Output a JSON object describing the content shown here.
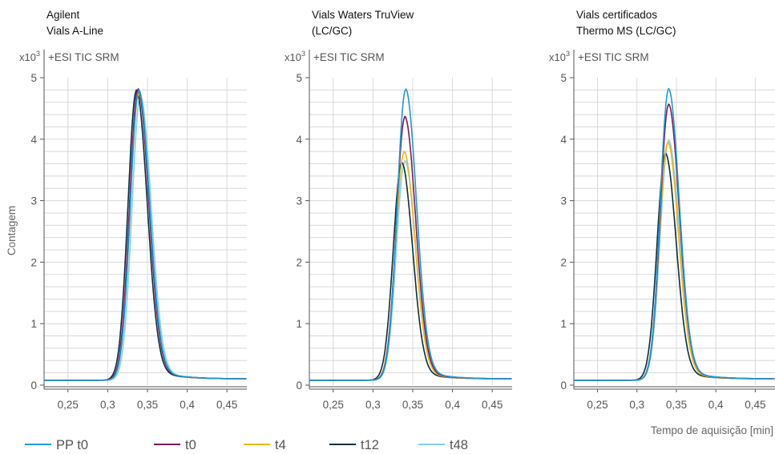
{
  "y_axis_title": "Contagem",
  "x_axis_title": "Tempo de aquisição [min]",
  "chart_data": [
    {
      "type": "line",
      "title_lines": [
        "Agilent",
        "Vials A-Line"
      ],
      "signal_label": "+ESI TIC SRM",
      "y_multiplier_base": "x10",
      "y_multiplier_exp": "3",
      "xlim": [
        0.22,
        0.475
      ],
      "ylim": [
        0,
        5
      ],
      "x_ticks": [
        {
          "value": 0.25,
          "label": "0,25"
        },
        {
          "value": 0.3,
          "label": "0,3"
        },
        {
          "value": 0.35,
          "label": "0,35"
        },
        {
          "value": 0.4,
          "label": "0,4"
        },
        {
          "value": 0.45,
          "label": "0,45"
        }
      ],
      "y_ticks": [
        {
          "value": 0,
          "label": "0"
        },
        {
          "value": 1,
          "label": "1"
        },
        {
          "value": 2,
          "label": "2"
        },
        {
          "value": 3,
          "label": "3"
        },
        {
          "value": 4,
          "label": "4"
        },
        {
          "value": 5,
          "label": "5"
        }
      ],
      "series": [
        {
          "name": "PP t0",
          "color": "#1f9ad6",
          "peak_x": 0.339,
          "peak_y": 4.7,
          "x": [
            0.22,
            0.25,
            0.3,
            0.31,
            0.32,
            0.33,
            0.339,
            0.35,
            0.36,
            0.37,
            0.38,
            0.4,
            0.43,
            0.475
          ],
          "y": [
            0.08,
            0.09,
            0.1,
            0.35,
            1.6,
            3.7,
            4.7,
            3.8,
            2.2,
            1.0,
            0.45,
            0.16,
            0.11,
            0.1
          ]
        },
        {
          "name": "t0",
          "color": "#7a1c5c",
          "peak_x": 0.338,
          "peak_y": 4.72,
          "x": [
            0.22,
            0.25,
            0.3,
            0.31,
            0.32,
            0.33,
            0.338,
            0.35,
            0.36,
            0.37,
            0.38,
            0.4,
            0.43,
            0.475
          ],
          "y": [
            0.08,
            0.09,
            0.1,
            0.4,
            1.7,
            3.8,
            4.72,
            3.7,
            2.1,
            0.95,
            0.43,
            0.15,
            0.1,
            0.09
          ]
        },
        {
          "name": "t4",
          "color": "#f2b705",
          "peak_x": 0.339,
          "peak_y": 4.65,
          "x": [
            0.22,
            0.25,
            0.3,
            0.31,
            0.32,
            0.33,
            0.339,
            0.35,
            0.36,
            0.37,
            0.38,
            0.4,
            0.43,
            0.475
          ],
          "y": [
            0.08,
            0.09,
            0.1,
            0.33,
            1.5,
            3.6,
            4.65,
            3.75,
            2.15,
            1.0,
            0.45,
            0.16,
            0.11,
            0.1
          ]
        },
        {
          "name": "t12",
          "color": "#0b2e3f",
          "peak_x": 0.336,
          "peak_y": 4.7,
          "x": [
            0.22,
            0.25,
            0.3,
            0.31,
            0.32,
            0.33,
            0.336,
            0.35,
            0.36,
            0.37,
            0.38,
            0.4,
            0.43,
            0.475
          ],
          "y": [
            0.08,
            0.09,
            0.1,
            0.45,
            1.9,
            4.0,
            4.7,
            3.5,
            1.9,
            0.85,
            0.38,
            0.14,
            0.1,
            0.09
          ]
        },
        {
          "name": "t48",
          "color": "#7fd0ee",
          "peak_x": 0.341,
          "peak_y": 4.6,
          "x": [
            0.22,
            0.25,
            0.3,
            0.31,
            0.32,
            0.33,
            0.341,
            0.35,
            0.36,
            0.37,
            0.38,
            0.4,
            0.43,
            0.475
          ],
          "y": [
            0.08,
            0.09,
            0.1,
            0.28,
            1.3,
            3.4,
            4.6,
            3.85,
            2.3,
            1.08,
            0.48,
            0.17,
            0.11,
            0.1
          ]
        }
      ]
    },
    {
      "type": "line",
      "title_lines": [
        "Vials Waters TruView",
        "(LC/GC)"
      ],
      "signal_label": "+ESI TIC SRM",
      "y_multiplier_base": "x10",
      "y_multiplier_exp": "3",
      "xlim": [
        0.22,
        0.475
      ],
      "ylim": [
        0,
        5
      ],
      "x_ticks": [
        {
          "value": 0.25,
          "label": "0,25"
        },
        {
          "value": 0.3,
          "label": "0,3"
        },
        {
          "value": 0.35,
          "label": "0,35"
        },
        {
          "value": 0.4,
          "label": "0,4"
        },
        {
          "value": 0.45,
          "label": "0,45"
        }
      ],
      "y_ticks": [
        {
          "value": 0,
          "label": "0"
        },
        {
          "value": 1,
          "label": "1"
        },
        {
          "value": 2,
          "label": "2"
        },
        {
          "value": 3,
          "label": "3"
        },
        {
          "value": 4,
          "label": "4"
        },
        {
          "value": 5,
          "label": "5"
        }
      ],
      "series": [
        {
          "name": "PP t0",
          "color": "#1f9ad6",
          "peak_x": 0.341,
          "peak_y": 4.72,
          "x": [
            0.22,
            0.25,
            0.3,
            0.31,
            0.32,
            0.33,
            0.341,
            0.35,
            0.36,
            0.37,
            0.38,
            0.4,
            0.43,
            0.475
          ],
          "y": [
            0.08,
            0.09,
            0.1,
            0.3,
            1.4,
            3.5,
            4.72,
            3.9,
            2.35,
            1.1,
            0.5,
            0.18,
            0.11,
            0.1
          ]
        },
        {
          "name": "t0",
          "color": "#7a1c5c",
          "peak_x": 0.34,
          "peak_y": 4.27,
          "x": [
            0.22,
            0.25,
            0.3,
            0.31,
            0.32,
            0.33,
            0.34,
            0.35,
            0.36,
            0.37,
            0.38,
            0.4,
            0.43,
            0.475
          ],
          "y": [
            0.08,
            0.09,
            0.1,
            0.3,
            1.3,
            3.2,
            4.27,
            3.5,
            2.05,
            0.95,
            0.43,
            0.16,
            0.1,
            0.09
          ]
        },
        {
          "name": "t4",
          "color": "#f2b705",
          "peak_x": 0.339,
          "peak_y": 3.7,
          "x": [
            0.22,
            0.25,
            0.3,
            0.31,
            0.32,
            0.33,
            0.339,
            0.35,
            0.36,
            0.37,
            0.38,
            0.4,
            0.43,
            0.475
          ],
          "y": [
            0.08,
            0.09,
            0.1,
            0.3,
            1.2,
            2.9,
            3.7,
            3.0,
            1.8,
            0.85,
            0.4,
            0.15,
            0.1,
            0.09
          ]
        },
        {
          "name": "t12",
          "color": "#0b2e3f",
          "peak_x": 0.336,
          "peak_y": 3.52,
          "x": [
            0.22,
            0.25,
            0.3,
            0.31,
            0.32,
            0.33,
            0.336,
            0.35,
            0.36,
            0.37,
            0.38,
            0.4,
            0.43,
            0.475
          ],
          "y": [
            0.08,
            0.09,
            0.1,
            0.35,
            1.4,
            3.0,
            3.52,
            2.6,
            1.45,
            0.65,
            0.3,
            0.12,
            0.1,
            0.09
          ]
        },
        {
          "name": "t48",
          "color": "#7fd0ee",
          "peak_x": 0.34,
          "peak_y": 3.55,
          "x": [
            0.22,
            0.25,
            0.3,
            0.31,
            0.32,
            0.33,
            0.34,
            0.35,
            0.36,
            0.37,
            0.38,
            0.4,
            0.43,
            0.475
          ],
          "y": [
            0.08,
            0.09,
            0.1,
            0.25,
            1.1,
            2.7,
            3.55,
            2.95,
            1.8,
            0.85,
            0.4,
            0.15,
            0.1,
            0.09
          ]
        }
      ]
    },
    {
      "type": "line",
      "title_lines": [
        "Vials certificados",
        "Thermo MS (LC/GC)"
      ],
      "signal_label": "+ESI TIC SRM",
      "y_multiplier_base": "x10",
      "y_multiplier_exp": "3",
      "xlim": [
        0.22,
        0.475
      ],
      "ylim": [
        0,
        5
      ],
      "x_ticks": [
        {
          "value": 0.25,
          "label": "0,25"
        },
        {
          "value": 0.3,
          "label": "0,3"
        },
        {
          "value": 0.35,
          "label": "0,35"
        },
        {
          "value": 0.4,
          "label": "0,4"
        },
        {
          "value": 0.45,
          "label": "0,45"
        }
      ],
      "y_ticks": [
        {
          "value": 0,
          "label": "0"
        },
        {
          "value": 1,
          "label": "1"
        },
        {
          "value": 2,
          "label": "2"
        },
        {
          "value": 3,
          "label": "3"
        },
        {
          "value": 4,
          "label": "4"
        },
        {
          "value": 5,
          "label": "5"
        }
      ],
      "series": [
        {
          "name": "PP t0",
          "color": "#1f9ad6",
          "peak_x": 0.34,
          "peak_y": 4.72,
          "x": [
            0.22,
            0.25,
            0.3,
            0.31,
            0.32,
            0.33,
            0.34,
            0.35,
            0.36,
            0.37,
            0.38,
            0.4,
            0.43,
            0.475
          ],
          "y": [
            0.08,
            0.09,
            0.1,
            0.3,
            1.4,
            3.5,
            4.72,
            3.9,
            2.35,
            1.1,
            0.5,
            0.18,
            0.11,
            0.1
          ]
        },
        {
          "name": "t0",
          "color": "#7a1c5c",
          "peak_x": 0.34,
          "peak_y": 4.47,
          "x": [
            0.22,
            0.25,
            0.3,
            0.31,
            0.32,
            0.33,
            0.34,
            0.35,
            0.36,
            0.37,
            0.38,
            0.4,
            0.43,
            0.475
          ],
          "y": [
            0.08,
            0.09,
            0.1,
            0.3,
            1.35,
            3.3,
            4.47,
            3.65,
            2.15,
            1.0,
            0.45,
            0.16,
            0.1,
            0.09
          ]
        },
        {
          "name": "t4",
          "color": "#f2b705",
          "peak_x": 0.339,
          "peak_y": 3.85,
          "x": [
            0.22,
            0.25,
            0.3,
            0.31,
            0.32,
            0.33,
            0.339,
            0.35,
            0.36,
            0.37,
            0.38,
            0.4,
            0.43,
            0.475
          ],
          "y": [
            0.08,
            0.09,
            0.1,
            0.3,
            1.25,
            3.0,
            3.85,
            3.1,
            1.85,
            0.88,
            0.4,
            0.15,
            0.1,
            0.09
          ]
        },
        {
          "name": "t12",
          "color": "#0b2e3f",
          "peak_x": 0.336,
          "peak_y": 3.67,
          "x": [
            0.22,
            0.25,
            0.3,
            0.31,
            0.32,
            0.33,
            0.336,
            0.35,
            0.36,
            0.37,
            0.38,
            0.4,
            0.43,
            0.475
          ],
          "y": [
            0.08,
            0.09,
            0.1,
            0.35,
            1.45,
            3.1,
            3.67,
            2.7,
            1.5,
            0.67,
            0.3,
            0.12,
            0.1,
            0.09
          ]
        },
        {
          "name": "t48",
          "color": "#7fd0ee",
          "peak_x": 0.34,
          "peak_y": 3.88,
          "x": [
            0.22,
            0.25,
            0.3,
            0.31,
            0.32,
            0.33,
            0.34,
            0.35,
            0.36,
            0.37,
            0.38,
            0.4,
            0.43,
            0.475
          ],
          "y": [
            0.08,
            0.09,
            0.1,
            0.28,
            1.2,
            3.0,
            3.88,
            3.2,
            1.95,
            0.92,
            0.42,
            0.16,
            0.1,
            0.09
          ]
        }
      ]
    }
  ],
  "legend": [
    {
      "label": "PP t0",
      "color": "#1f9ad6"
    },
    {
      "label": "t0",
      "color": "#7a1c5c"
    },
    {
      "label": "t4",
      "color": "#f2b705"
    },
    {
      "label": "t12",
      "color": "#0b2e3f"
    },
    {
      "label": "t48",
      "color": "#7fd0ee"
    }
  ]
}
